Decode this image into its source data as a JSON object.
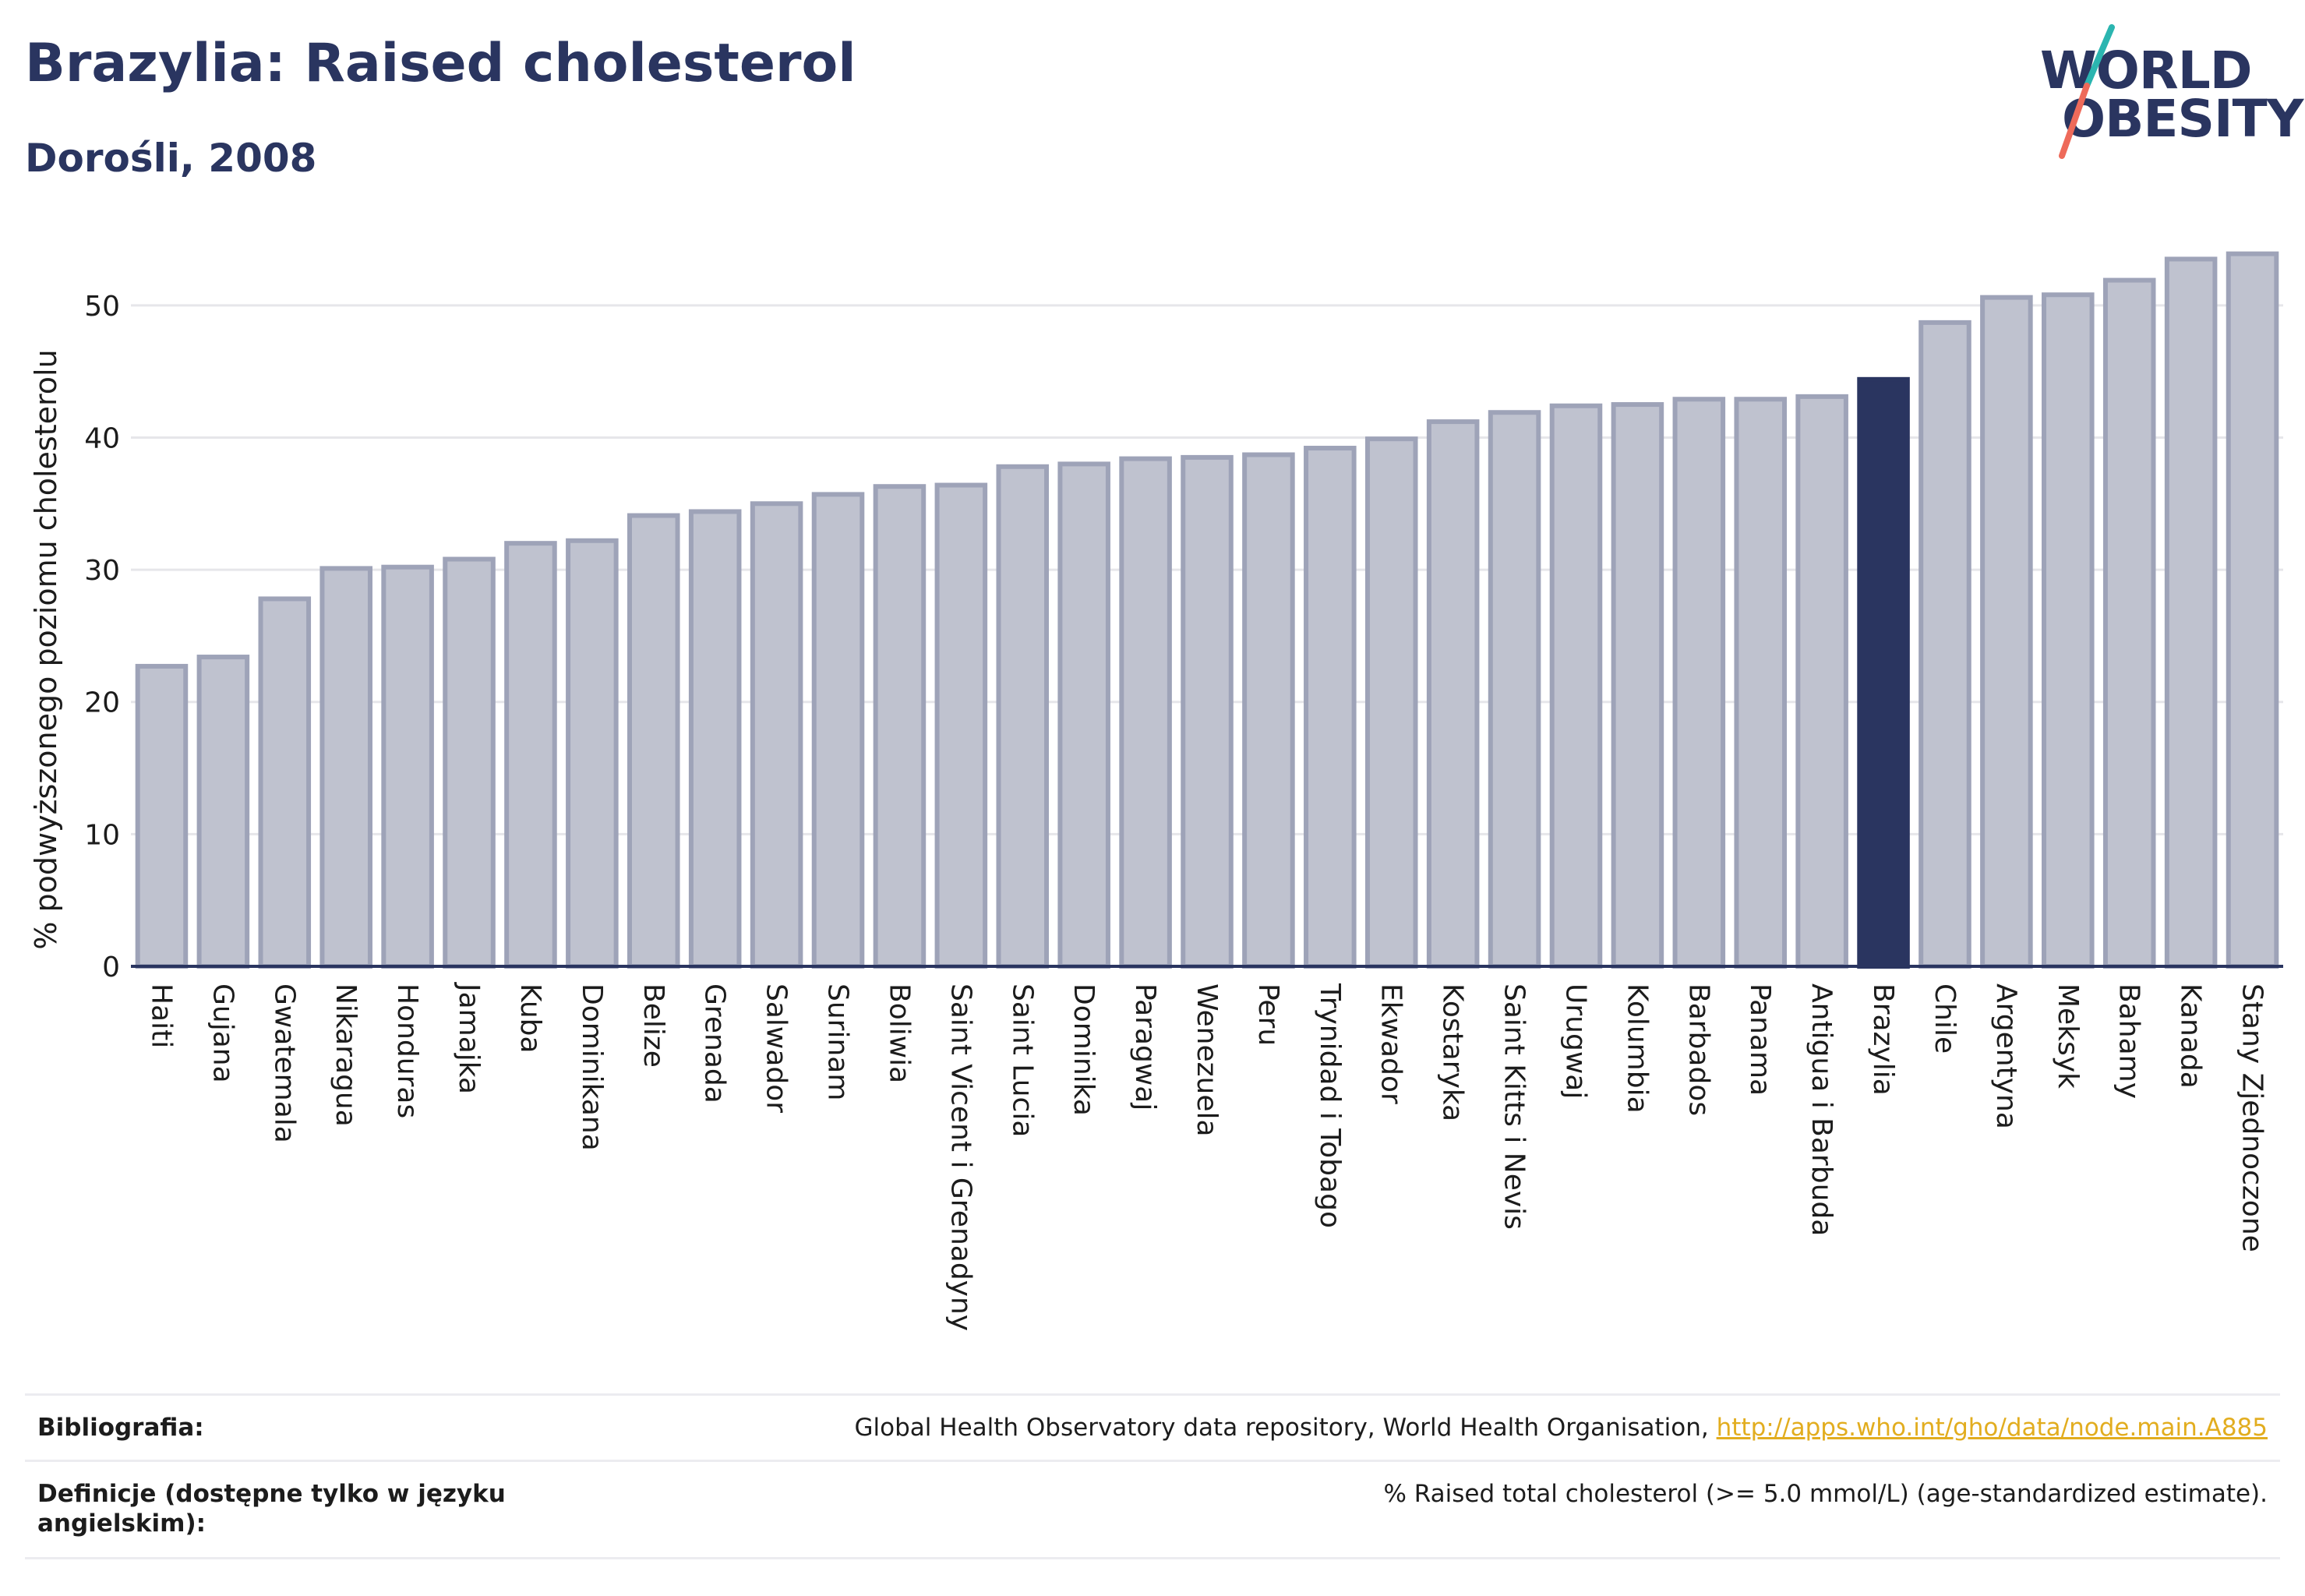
{
  "header": {
    "title": "Brazylia: Raised cholesterol",
    "subtitle": "Dorośli, 2008"
  },
  "logo": {
    "line1": "WORLD",
    "line2": "OBESITY",
    "colors": {
      "text": "#2a3560",
      "slash_top": "#2bb5b0",
      "slash_bottom": "#ee6a5a"
    }
  },
  "chart_data": {
    "type": "bar",
    "ylabel": "% podwyższonego poziomu cholesterolu",
    "xlabel": "",
    "ylim": [
      0,
      55
    ],
    "yticks": [
      0,
      10,
      20,
      30,
      40,
      50
    ],
    "grid": true,
    "highlight": "Brazylia",
    "colors": {
      "bar": "#bfc2cf",
      "bar_border": "#9ea3b8",
      "highlight": "#2a3560",
      "grid": "#e6e6ea",
      "axis": "#2a3560"
    },
    "categories": [
      "Haiti",
      "Gujana",
      "Gwatemala",
      "Nikaragua",
      "Honduras",
      "Jamajka",
      "Kuba",
      "Dominikana",
      "Belize",
      "Grenada",
      "Salwador",
      "Surinam",
      "Boliwia",
      "Saint Vicent i Grenadyny",
      "Saint Lucia",
      "Dominika",
      "Paragwaj",
      "Wenezuela",
      "Peru",
      "Trynidad i Tobago",
      "Ekwador",
      "Kostaryka",
      "Saint Kitts i Nevis",
      "Urugwaj",
      "Kolumbia",
      "Barbados",
      "Panama",
      "Antigua i Barbuda",
      "Brazylia",
      "Chile",
      "Argentyna",
      "Meksyk",
      "Bahamy",
      "Kanada",
      "Stany Zjednoczone"
    ],
    "values": [
      22.7,
      23.4,
      27.8,
      30.1,
      30.2,
      30.8,
      32.0,
      32.2,
      34.1,
      34.4,
      35.0,
      35.7,
      36.3,
      36.4,
      37.8,
      38.0,
      38.4,
      38.5,
      38.7,
      39.2,
      39.9,
      41.2,
      41.9,
      42.4,
      42.5,
      42.9,
      42.9,
      43.1,
      44.4,
      48.7,
      50.6,
      50.8,
      51.9,
      53.5,
      53.9
    ]
  },
  "footer": {
    "bibliography_label": "Bibliografia:",
    "bibliography_text": "Global Health Observatory data repository, World Health Organisation, ",
    "bibliography_link": "http://apps.who.int/gho/data/node.main.A885",
    "definitions_label": "Definicje (dostępne tylko w języku angielskim):",
    "definitions_text": "% Raised total cholesterol (>= 5.0 mmol/L) (age-standardized estimate)."
  }
}
